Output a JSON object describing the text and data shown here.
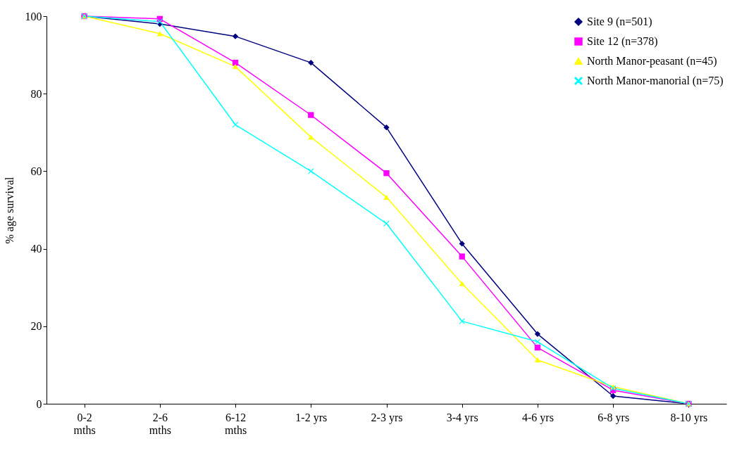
{
  "chart_data": {
    "type": "line",
    "ylabel": "% age survival",
    "categories": [
      "0-2\nmths",
      "2-6\nmths",
      "6-12\nmths",
      "1-2 yrs",
      "2-3 yrs",
      "3-4 yrs",
      "4-6 yrs",
      "6-8 yrs",
      "8-10 yrs"
    ],
    "series": [
      {
        "name": "Site 9 (n=501)",
        "color": "#000080",
        "marker": "diamond",
        "values": [
          100,
          98,
          94.8,
          88,
          71.3,
          41.3,
          18,
          2,
          0
        ]
      },
      {
        "name": "Site 12 (n=378)",
        "color": "#ff00ff",
        "marker": "square",
        "values": [
          100,
          99.3,
          88,
          74.5,
          59.5,
          38,
          14.5,
          3.5,
          0
        ]
      },
      {
        "name": "North Manor-peasant  (n=45)",
        "color": "#ffff00",
        "marker": "triangle",
        "values": [
          100,
          95.5,
          87,
          68.8,
          53.3,
          31,
          11.3,
          4.4,
          0
        ]
      },
      {
        "name": "North Manor-manorial  (n=75)",
        "color": "#00ffff",
        "marker": "cross",
        "values": [
          100,
          98.6,
          72,
          60,
          46.5,
          21.3,
          16,
          4,
          0
        ]
      }
    ],
    "ylim": [
      0,
      100
    ],
    "yticks": [
      0,
      20,
      40,
      60,
      80,
      100
    ],
    "grid": false,
    "legend": "top right"
  }
}
